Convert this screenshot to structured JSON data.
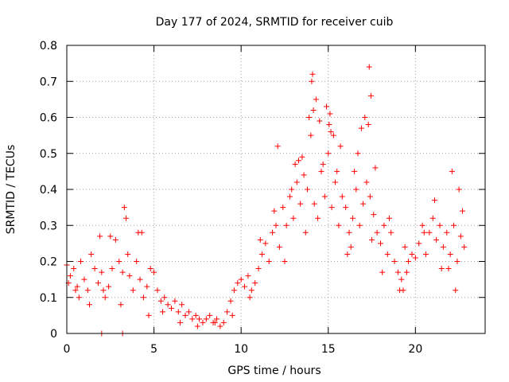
{
  "chart_data": {
    "type": "scatter",
    "title": "Day 177 of 2024, SRMTID for receiver cuib",
    "xlabel": "GPS time / hours",
    "ylabel": "SRMTID / TECUs",
    "xlim": [
      0,
      24
    ],
    "ylim": [
      0,
      0.8
    ],
    "xticks": [
      0,
      5,
      10,
      15,
      20
    ],
    "xtick_labels": [
      "0",
      "5",
      "10",
      "15",
      "20"
    ],
    "yticks": [
      0,
      0.1,
      0.2,
      0.3,
      0.4,
      0.5,
      0.6,
      0.7,
      0.8
    ],
    "ytick_labels": [
      "0",
      "0.1",
      "0.2",
      "0.3",
      "0.4",
      "0.5",
      "0.6",
      "0.7",
      "0.8"
    ],
    "grid": true,
    "marker": "+",
    "color": "#ff0000",
    "series": [
      {
        "name": "SRMTID",
        "x": [
          0.0,
          0.2,
          0.4,
          0.6,
          0.8,
          1.0,
          1.2,
          1.4,
          1.6,
          1.8,
          2.0,
          2.2,
          2.4,
          2.6,
          2.8,
          3.0,
          3.2,
          3.4,
          3.6,
          3.8,
          4.0,
          4.2,
          4.4,
          4.6,
          4.8,
          5.0,
          5.2,
          5.4,
          5.6,
          5.8,
          6.0,
          6.2,
          6.4,
          6.6,
          6.8,
          7.0,
          7.2,
          7.4,
          7.6,
          7.8,
          8.0,
          8.2,
          8.4,
          8.6,
          8.8,
          9.0,
          9.2,
          9.4,
          9.6,
          9.8,
          10.0,
          10.2,
          10.4,
          10.6,
          10.8,
          11.0,
          11.2,
          11.4,
          11.6,
          11.8,
          12.0,
          12.2,
          12.4,
          12.6,
          12.8,
          13.0,
          13.2,
          13.4,
          13.6,
          13.8,
          14.0,
          14.2,
          14.4,
          14.6,
          14.8,
          15.0,
          15.2,
          15.4,
          15.6,
          15.8,
          16.0,
          16.2,
          16.4,
          16.6,
          16.8,
          17.0,
          17.2,
          17.4,
          17.6,
          17.8,
          18.0,
          18.2,
          18.4,
          18.6,
          18.8,
          19.0,
          19.2,
          19.4,
          19.6,
          19.8,
          20.0,
          20.2,
          20.4,
          20.6,
          20.8,
          21.0,
          21.2,
          21.4,
          21.6,
          21.8,
          22.0,
          22.2,
          22.4,
          22.6,
          22.8,
          0.1,
          0.7,
          1.3,
          2.1,
          2.5,
          3.1,
          3.3,
          3.5,
          4.1,
          4.7,
          5.5,
          6.5,
          7.5,
          8.5,
          9.5,
          10.5,
          11.1,
          11.9,
          12.5,
          13.1,
          13.3,
          13.7,
          13.9,
          14.1,
          14.3,
          14.5,
          14.7,
          14.9,
          15.1,
          15.3,
          15.5,
          15.7,
          16.1,
          16.3,
          16.5,
          16.9,
          17.1,
          17.3,
          17.5,
          17.7,
          18.1,
          18.5,
          19.1,
          19.5,
          20.5,
          21.1,
          21.5,
          22.1,
          22.3,
          22.5,
          22.7,
          12.1,
          12.9,
          13.5,
          14.05,
          14.15,
          15.05,
          15.15,
          17.35,
          17.45,
          16.7,
          19.3,
          1.9,
          3.2,
          2.0,
          4.3,
          0.5,
          21.9
        ],
        "y": [
          0.19,
          0.16,
          0.18,
          0.13,
          0.2,
          0.15,
          0.12,
          0.22,
          0.18,
          0.14,
          0.17,
          0.1,
          0.13,
          0.18,
          0.26,
          0.2,
          0.17,
          0.32,
          0.16,
          0.12,
          0.2,
          0.15,
          0.1,
          0.13,
          0.18,
          0.17,
          0.12,
          0.09,
          0.1,
          0.08,
          0.07,
          0.09,
          0.06,
          0.08,
          0.05,
          0.06,
          0.04,
          0.05,
          0.04,
          0.03,
          0.04,
          0.05,
          0.03,
          0.04,
          0.02,
          0.03,
          0.06,
          0.09,
          0.12,
          0.14,
          0.15,
          0.13,
          0.16,
          0.12,
          0.14,
          0.18,
          0.22,
          0.25,
          0.2,
          0.28,
          0.3,
          0.24,
          0.35,
          0.3,
          0.38,
          0.32,
          0.42,
          0.36,
          0.44,
          0.4,
          0.55,
          0.36,
          0.32,
          0.45,
          0.38,
          0.5,
          0.35,
          0.42,
          0.3,
          0.38,
          0.35,
          0.28,
          0.32,
          0.4,
          0.3,
          0.36,
          0.42,
          0.38,
          0.33,
          0.28,
          0.25,
          0.3,
          0.22,
          0.28,
          0.2,
          0.17,
          0.15,
          0.24,
          0.2,
          0.22,
          0.21,
          0.25,
          0.3,
          0.22,
          0.28,
          0.32,
          0.26,
          0.3,
          0.24,
          0.28,
          0.22,
          0.3,
          0.2,
          0.27,
          0.24,
          0.14,
          0.1,
          0.08,
          0.12,
          0.27,
          0.08,
          0.35,
          0.22,
          0.28,
          0.05,
          0.06,
          0.03,
          0.02,
          0.03,
          0.05,
          0.1,
          0.26,
          0.34,
          0.2,
          0.47,
          0.48,
          0.28,
          0.6,
          0.72,
          0.65,
          0.59,
          0.47,
          0.63,
          0.61,
          0.55,
          0.45,
          0.52,
          0.22,
          0.24,
          0.45,
          0.57,
          0.6,
          0.58,
          0.26,
          0.46,
          0.17,
          0.32,
          0.12,
          0.17,
          0.28,
          0.37,
          0.18,
          0.45,
          0.12,
          0.4,
          0.34,
          0.52,
          0.4,
          0.49,
          0.7,
          0.62,
          0.58,
          0.56,
          0.74,
          0.66,
          0.5,
          0.12,
          0.27,
          0.0,
          0.0,
          0.28,
          0.12,
          0.18
        ]
      }
    ]
  }
}
